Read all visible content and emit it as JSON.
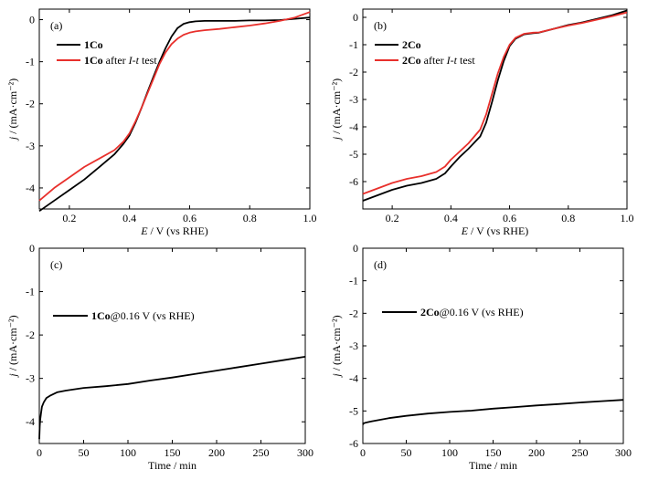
{
  "chart_data": [
    {
      "type": "line",
      "panel_label": "(a)",
      "xlabel": "E / V (vs RHE)",
      "ylabel": "j / (mA·cm⁻²)",
      "xlim": [
        0.1,
        1.0
      ],
      "ylim": [
        -4.5,
        0.25
      ],
      "xticks": [
        0.2,
        0.4,
        0.6,
        0.8,
        1.0
      ],
      "xtick_labels": [
        "0.2",
        "0.4",
        "0.6",
        "0.8",
        "1.0"
      ],
      "yticks": [
        0,
        -1,
        -2,
        -3,
        -4
      ],
      "ytick_labels": [
        "0",
        "-1",
        "-2",
        "-3",
        "-4"
      ],
      "legend_position": "top-left",
      "series": [
        {
          "name": "1Co",
          "legend_bold": "1Co",
          "legend_rest": "",
          "color": "#000000",
          "x": [
            0.1,
            0.15,
            0.2,
            0.25,
            0.3,
            0.35,
            0.38,
            0.4,
            0.42,
            0.44,
            0.46,
            0.48,
            0.5,
            0.52,
            0.54,
            0.56,
            0.58,
            0.6,
            0.62,
            0.65,
            0.7,
            0.75,
            0.8,
            0.85,
            0.9,
            0.95,
            1.0
          ],
          "y": [
            -4.55,
            -4.3,
            -4.05,
            -3.8,
            -3.5,
            -3.2,
            -2.95,
            -2.75,
            -2.45,
            -2.1,
            -1.72,
            -1.35,
            -1.0,
            -0.68,
            -0.4,
            -0.2,
            -0.1,
            -0.06,
            -0.04,
            -0.03,
            -0.03,
            -0.03,
            -0.02,
            -0.02,
            -0.01,
            0.02,
            0.05
          ]
        },
        {
          "name": "1Co after I-t test",
          "legend_bold": "1Co",
          "legend_rest": " after ",
          "legend_italic": "I-t",
          "legend_tail": " test",
          "color": "#e8302c",
          "x": [
            0.1,
            0.15,
            0.2,
            0.25,
            0.3,
            0.35,
            0.38,
            0.4,
            0.42,
            0.44,
            0.46,
            0.48,
            0.5,
            0.52,
            0.54,
            0.56,
            0.58,
            0.6,
            0.62,
            0.65,
            0.7,
            0.75,
            0.8,
            0.85,
            0.9,
            0.95,
            1.0
          ],
          "y": [
            -4.3,
            -4.0,
            -3.75,
            -3.5,
            -3.3,
            -3.1,
            -2.9,
            -2.7,
            -2.42,
            -2.1,
            -1.75,
            -1.4,
            -1.05,
            -0.78,
            -0.58,
            -0.45,
            -0.36,
            -0.31,
            -0.28,
            -0.25,
            -0.22,
            -0.18,
            -0.14,
            -0.09,
            -0.03,
            0.05,
            0.18
          ]
        }
      ]
    },
    {
      "type": "line",
      "panel_label": "(b)",
      "xlabel": "E / V (vs RHE)",
      "ylabel": "j / (mA·cm⁻²)",
      "xlim": [
        0.1,
        1.0
      ],
      "ylim": [
        -7.0,
        0.3
      ],
      "xticks": [
        0.2,
        0.4,
        0.6,
        0.8,
        1.0
      ],
      "xtick_labels": [
        "0.2",
        "0.4",
        "0.6",
        "0.8",
        "1.0"
      ],
      "yticks": [
        0,
        -1,
        -2,
        -3,
        -4,
        -5,
        -6
      ],
      "ytick_labels": [
        "0",
        "-1",
        "-2",
        "-3",
        "-4",
        "-5",
        "-6"
      ],
      "legend_position": "top-left",
      "series": [
        {
          "name": "2Co",
          "legend_bold": "2Co",
          "legend_rest": "",
          "color": "#000000",
          "x": [
            0.1,
            0.15,
            0.2,
            0.25,
            0.3,
            0.35,
            0.38,
            0.4,
            0.43,
            0.46,
            0.5,
            0.52,
            0.54,
            0.56,
            0.58,
            0.6,
            0.62,
            0.65,
            0.68,
            0.7,
            0.75,
            0.8,
            0.85,
            0.9,
            0.95,
            1.0
          ],
          "y": [
            -6.7,
            -6.5,
            -6.3,
            -6.15,
            -6.05,
            -5.9,
            -5.7,
            -5.45,
            -5.1,
            -4.8,
            -4.35,
            -3.85,
            -3.1,
            -2.3,
            -1.6,
            -1.05,
            -0.78,
            -0.62,
            -0.58,
            -0.56,
            -0.42,
            -0.28,
            -0.18,
            -0.05,
            0.08,
            0.25
          ]
        },
        {
          "name": "2Co after I-t test",
          "legend_bold": "2Co",
          "legend_rest": " after ",
          "legend_italic": "I-t",
          "legend_tail": " test",
          "color": "#e8302c",
          "x": [
            0.1,
            0.15,
            0.2,
            0.25,
            0.3,
            0.35,
            0.38,
            0.4,
            0.43,
            0.46,
            0.5,
            0.52,
            0.54,
            0.56,
            0.58,
            0.6,
            0.62,
            0.65,
            0.68,
            0.7,
            0.75,
            0.8,
            0.85,
            0.9,
            0.95,
            1.0
          ],
          "y": [
            -6.45,
            -6.25,
            -6.05,
            -5.9,
            -5.8,
            -5.65,
            -5.45,
            -5.2,
            -4.9,
            -4.6,
            -4.1,
            -3.55,
            -2.8,
            -2.05,
            -1.45,
            -1.0,
            -0.75,
            -0.6,
            -0.56,
            -0.55,
            -0.42,
            -0.3,
            -0.2,
            -0.08,
            0.04,
            0.18
          ]
        }
      ]
    },
    {
      "type": "line",
      "panel_label": "(c)",
      "xlabel": "Time / min",
      "ylabel": "j / (mA·cm⁻²)",
      "xlim": [
        0,
        300
      ],
      "ylim": [
        -4.5,
        0
      ],
      "xticks": [
        0,
        50,
        100,
        150,
        200,
        250,
        300
      ],
      "xtick_labels": [
        "0",
        "50",
        "100",
        "150",
        "200",
        "250",
        "300"
      ],
      "yticks": [
        0,
        -1,
        -2,
        -3,
        -4
      ],
      "ytick_labels": [
        "0",
        "-1",
        "-2",
        "-3",
        "-4"
      ],
      "legend_position": "upper-left",
      "series": [
        {
          "name": "1Co@0.16 V (vs RHE)",
          "legend_bold": "1Co",
          "legend_rest": "@0.16 V (vs RHE)",
          "color": "#000000",
          "x": [
            0,
            0.5,
            1,
            2,
            3,
            5,
            8,
            12,
            20,
            30,
            50,
            75,
            100,
            125,
            150,
            175,
            200,
            225,
            250,
            275,
            300
          ],
          "y": [
            -4.4,
            -4.1,
            -3.95,
            -3.8,
            -3.65,
            -3.55,
            -3.45,
            -3.4,
            -3.32,
            -3.28,
            -3.22,
            -3.18,
            -3.13,
            -3.05,
            -2.98,
            -2.9,
            -2.82,
            -2.74,
            -2.66,
            -2.58,
            -2.5
          ]
        }
      ]
    },
    {
      "type": "line",
      "panel_label": "(d)",
      "xlabel": "Time / min",
      "ylabel": "j / (mA·cm⁻²)",
      "xlim": [
        0,
        300
      ],
      "ylim": [
        -6,
        0
      ],
      "xticks": [
        0,
        50,
        100,
        150,
        200,
        250,
        300
      ],
      "xtick_labels": [
        "0",
        "50",
        "100",
        "150",
        "200",
        "250",
        "300"
      ],
      "yticks": [
        0,
        -1,
        -2,
        -3,
        -4,
        -5,
        -6
      ],
      "ytick_labels": [
        "0",
        "-1",
        "-2",
        "-3",
        "-4",
        "-5",
        "-6"
      ],
      "legend_position": "upper-left",
      "series": [
        {
          "name": "2Co@0.16 V (vs RHE)",
          "legend_bold": "2Co",
          "legend_rest": "@0.16 V (vs RHE)",
          "color": "#000000",
          "x": [
            0,
            1,
            3,
            5,
            10,
            20,
            30,
            50,
            75,
            100,
            125,
            150,
            175,
            200,
            225,
            250,
            275,
            300
          ],
          "y": [
            -5.42,
            -5.38,
            -5.36,
            -5.35,
            -5.32,
            -5.27,
            -5.22,
            -5.15,
            -5.08,
            -5.03,
            -4.99,
            -4.93,
            -4.88,
            -4.83,
            -4.79,
            -4.74,
            -4.7,
            -4.66
          ]
        }
      ]
    }
  ]
}
